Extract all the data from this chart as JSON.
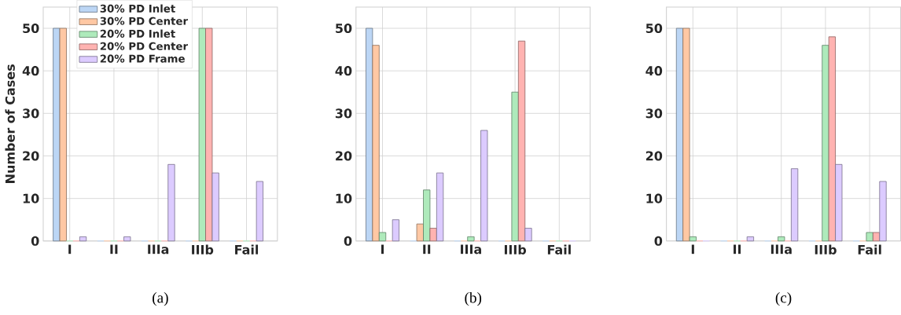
{
  "chart_data": [
    {
      "type": "bar",
      "ylabel": "Number of Cases",
      "categories": [
        "I",
        "II",
        "IIIa",
        "IIIb",
        "Fail"
      ],
      "ylim": [
        0,
        55
      ],
      "yticks": [
        0,
        10,
        20,
        30,
        40,
        50
      ],
      "grid": true,
      "legend": "top",
      "annotations": [
        "(a)"
      ],
      "series": [
        {
          "name": "30% PD Inlet",
          "color": "#bcd6f5",
          "values": [
            50,
            0,
            0,
            0,
            0
          ]
        },
        {
          "name": "30% PD Center",
          "color": "#ffc8a4",
          "values": [
            50,
            0,
            0,
            0,
            0
          ]
        },
        {
          "name": "20% PD Inlet",
          "color": "#aeeabb",
          "values": [
            0,
            0,
            0,
            50,
            0
          ]
        },
        {
          "name": "20% PD Center",
          "color": "#ffb3b1",
          "values": [
            0,
            0,
            0,
            50,
            0
          ]
        },
        {
          "name": "20% PD Frame",
          "color": "#dccbff",
          "values": [
            1,
            1,
            18,
            16,
            14
          ]
        }
      ]
    },
    {
      "type": "bar",
      "categories": [
        "I",
        "II",
        "IIIa",
        "IIIb",
        "Fail"
      ],
      "ylim": [
        0,
        55
      ],
      "yticks": [
        0,
        10,
        20,
        30,
        40,
        50
      ],
      "grid": true,
      "annotations": [
        "(b)"
      ],
      "series": [
        {
          "color": "#bcd6f5",
          "values": [
            50,
            0,
            0,
            0,
            0
          ]
        },
        {
          "color": "#ffc8a4",
          "values": [
            46,
            4,
            0,
            0,
            0
          ]
        },
        {
          "color": "#aeeabb",
          "values": [
            2,
            12,
            1,
            35,
            0
          ]
        },
        {
          "color": "#ffb3b1",
          "values": [
            0,
            3,
            0,
            47,
            0
          ]
        },
        {
          "color": "#dccbff",
          "values": [
            5,
            16,
            26,
            3,
            0
          ]
        }
      ]
    },
    {
      "type": "bar",
      "categories": [
        "I",
        "II",
        "IIIa",
        "IIIb",
        "Fail"
      ],
      "ylim": [
        0,
        55
      ],
      "yticks": [
        0,
        10,
        20,
        30,
        40,
        50
      ],
      "grid": true,
      "annotations": [
        "(c)"
      ],
      "series": [
        {
          "color": "#bcd6f5",
          "values": [
            50,
            0,
            0,
            0,
            0
          ]
        },
        {
          "color": "#ffc8a4",
          "values": [
            50,
            0,
            0,
            0,
            0
          ]
        },
        {
          "color": "#aeeabb",
          "values": [
            1,
            0,
            1,
            46,
            2
          ]
        },
        {
          "color": "#ffb3b1",
          "values": [
            0,
            0,
            0,
            48,
            2
          ]
        },
        {
          "color": "#dccbff",
          "values": [
            0,
            1,
            17,
            18,
            14
          ]
        }
      ]
    }
  ]
}
